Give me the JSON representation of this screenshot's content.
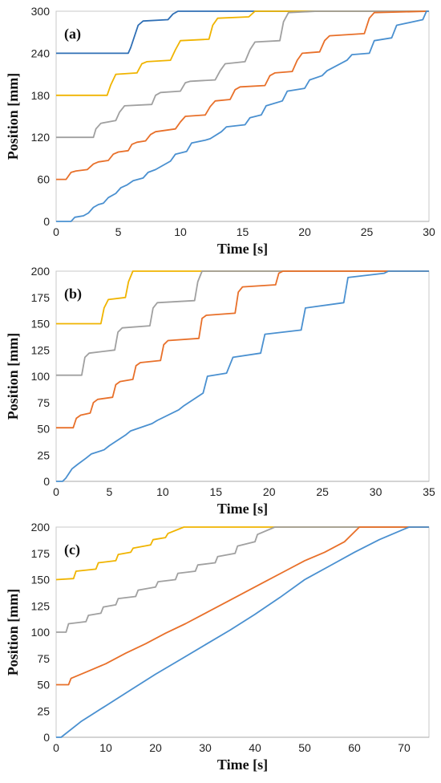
{
  "chart_data": [
    {
      "type": "line",
      "panel_label": "(a)",
      "xlabel": "Time [s]",
      "ylabel": "Position [mm]",
      "xlim": [
        0,
        30
      ],
      "ylim": [
        0,
        300
      ],
      "xticks": [
        0,
        5,
        10,
        15,
        20,
        25,
        30
      ],
      "yticks": [
        0,
        60,
        120,
        180,
        240,
        300
      ],
      "grid": false,
      "series": [
        {
          "color": "#2f6fb5",
          "x": [
            0,
            5.8,
            6.0,
            6.6,
            7.0,
            9.0,
            9.4,
            9.8,
            30
          ],
          "y": [
            240,
            240,
            248,
            280,
            286,
            288,
            296,
            300,
            300
          ]
        },
        {
          "color": "#f0b400",
          "x": [
            0,
            4.1,
            4.4,
            4.8,
            6.5,
            6.9,
            7.3,
            9.2,
            9.6,
            10.0,
            12.3,
            12.6,
            13.0,
            15.5,
            16.0,
            30
          ],
          "y": [
            180,
            180,
            195,
            210,
            212,
            225,
            228,
            230,
            245,
            258,
            260,
            280,
            290,
            292,
            300,
            300
          ]
        },
        {
          "color": "#a0a0a0",
          "x": [
            0,
            3.0,
            3.2,
            3.6,
            4.8,
            5.1,
            5.5,
            7.7,
            8.0,
            8.4,
            10.0,
            10.4,
            10.8,
            12.8,
            13.2,
            13.6,
            15.2,
            15.6,
            16.0,
            18.0,
            18.3,
            18.7,
            21.0,
            30
          ],
          "y": [
            120,
            120,
            132,
            140,
            144,
            156,
            165,
            167,
            180,
            184,
            186,
            198,
            200,
            202,
            215,
            225,
            228,
            245,
            256,
            258,
            285,
            298,
            300,
            300
          ]
        },
        {
          "color": "#e8702a",
          "x": [
            0,
            0.8,
            1.2,
            1.6,
            2.5,
            3.0,
            3.4,
            4.2,
            4.6,
            5.0,
            5.8,
            6.1,
            6.5,
            7.2,
            7.6,
            8.0,
            9.6,
            10.0,
            10.4,
            12.0,
            12.4,
            12.8,
            14.0,
            14.4,
            14.8,
            16.8,
            17.2,
            17.6,
            19.0,
            19.4,
            19.8,
            21.2,
            21.6,
            22.0,
            24.8,
            25.2,
            25.6,
            30
          ],
          "y": [
            60,
            60,
            70,
            72,
            74,
            82,
            85,
            87,
            96,
            99,
            101,
            110,
            113,
            115,
            124,
            128,
            132,
            142,
            150,
            152,
            164,
            172,
            174,
            188,
            192,
            194,
            208,
            212,
            214,
            230,
            240,
            242,
            258,
            265,
            268,
            290,
            298,
            300
          ]
        },
        {
          "color": "#4a90d0",
          "x": [
            0,
            1.2,
            1.5,
            2.2,
            2.6,
            3.0,
            3.4,
            3.8,
            4.2,
            4.8,
            5.2,
            5.7,
            6.2,
            7.0,
            7.4,
            8.0,
            8.4,
            9.2,
            9.6,
            10.5,
            10.9,
            12.0,
            12.4,
            13.3,
            13.7,
            15.2,
            15.6,
            16.5,
            16.9,
            18.2,
            18.6,
            20.0,
            20.4,
            21.4,
            21.8,
            23.4,
            23.8,
            25.2,
            25.6,
            27.0,
            27.4,
            29.5,
            29.8,
            30
          ],
          "y": [
            0,
            0,
            6,
            8,
            12,
            20,
            24,
            26,
            34,
            40,
            48,
            52,
            58,
            62,
            70,
            74,
            78,
            86,
            96,
            100,
            112,
            116,
            118,
            128,
            135,
            138,
            148,
            152,
            165,
            172,
            186,
            190,
            202,
            208,
            215,
            230,
            238,
            240,
            258,
            262,
            280,
            288,
            300,
            300
          ]
        }
      ]
    },
    {
      "type": "line",
      "panel_label": "(b)",
      "xlabel": "Time [s]",
      "ylabel": "Position [mm]",
      "xlim": [
        0,
        35
      ],
      "ylim": [
        0,
        200
      ],
      "xticks": [
        0,
        5,
        10,
        15,
        20,
        25,
        30,
        35
      ],
      "yticks": [
        0,
        25,
        50,
        75,
        100,
        125,
        150,
        175,
        200
      ],
      "grid": false,
      "series": [
        {
          "color": "#f0b400",
          "x": [
            0,
            4.2,
            4.5,
            4.9,
            6.5,
            6.8,
            7.2,
            35
          ],
          "y": [
            150,
            150,
            165,
            173,
            175,
            190,
            200,
            200
          ]
        },
        {
          "color": "#a0a0a0",
          "x": [
            0,
            2.4,
            2.7,
            3.1,
            5.5,
            5.8,
            6.2,
            8.8,
            9.1,
            9.5,
            13.0,
            13.3,
            13.7,
            35
          ],
          "y": [
            101,
            101,
            118,
            122,
            125,
            142,
            146,
            148,
            165,
            170,
            172,
            190,
            200,
            200
          ]
        },
        {
          "color": "#e8702a",
          "x": [
            0,
            1.6,
            1.9,
            2.3,
            3.2,
            3.5,
            3.9,
            5.3,
            5.6,
            6.0,
            7.2,
            7.5,
            7.9,
            9.8,
            10.1,
            10.5,
            13.4,
            13.7,
            14.1,
            16.8,
            17.1,
            17.5,
            20.6,
            20.9,
            21.3,
            35
          ],
          "y": [
            51,
            51,
            60,
            63,
            65,
            75,
            78,
            80,
            92,
            95,
            97,
            110,
            113,
            115,
            130,
            134,
            136,
            155,
            158,
            160,
            180,
            185,
            187,
            198,
            200,
            200
          ]
        },
        {
          "color": "#4a90d0",
          "x": [
            0,
            0.6,
            0.9,
            1.5,
            2.0,
            2.8,
            3.3,
            4.5,
            5.0,
            6.5,
            7.0,
            9.0,
            9.5,
            11.5,
            12.0,
            13.8,
            14.2,
            16.0,
            16.6,
            19.2,
            19.6,
            23.0,
            23.4,
            27.0,
            27.4,
            30.8,
            31.2,
            35
          ],
          "y": [
            0,
            0,
            3,
            12,
            16,
            22,
            26,
            30,
            34,
            44,
            48,
            55,
            58,
            68,
            72,
            84,
            100,
            103,
            118,
            122,
            140,
            144,
            165,
            170,
            194,
            198,
            200,
            200
          ]
        }
      ]
    },
    {
      "type": "line",
      "panel_label": "(c)",
      "xlabel": "Time [s]",
      "ylabel": "Position [mm]",
      "xlim": [
        0,
        75
      ],
      "ylim": [
        0,
        200
      ],
      "xticks": [
        0,
        10,
        20,
        30,
        40,
        50,
        60,
        70
      ],
      "yticks": [
        0,
        25,
        50,
        75,
        100,
        125,
        150,
        175,
        200
      ],
      "grid": false,
      "series": [
        {
          "color": "#f0b400",
          "x": [
            0,
            3.5,
            4.0,
            8.0,
            8.5,
            12.0,
            12.5,
            15.0,
            15.5,
            19.0,
            19.5,
            22.0,
            22.5,
            25.7,
            75
          ],
          "y": [
            150,
            151,
            158,
            160,
            166,
            168,
            174,
            176,
            180,
            183,
            188,
            190,
            194,
            200,
            200
          ]
        },
        {
          "color": "#a0a0a0",
          "x": [
            0,
            2.0,
            2.5,
            6.0,
            6.5,
            9.0,
            9.5,
            12.0,
            12.5,
            16.0,
            16.5,
            20.0,
            20.5,
            24.0,
            24.5,
            28.0,
            28.5,
            32.0,
            32.5,
            36.0,
            36.5,
            40.0,
            40.5,
            44.0,
            75
          ],
          "y": [
            100,
            100,
            108,
            110,
            116,
            118,
            124,
            126,
            132,
            134,
            140,
            143,
            148,
            150,
            156,
            158,
            164,
            166,
            172,
            175,
            182,
            186,
            193,
            200,
            200
          ]
        },
        {
          "color": "#e8702a",
          "x": [
            0,
            2.5,
            3.0,
            6.0,
            10.0,
            14.0,
            18.0,
            22.0,
            26.0,
            30.0,
            34.0,
            38.0,
            42.0,
            46.0,
            50.0,
            54.0,
            58.0,
            61.0,
            75
          ],
          "y": [
            50,
            50,
            56,
            62,
            70,
            80,
            89,
            99,
            108,
            118,
            128,
            138,
            148,
            158,
            168,
            176,
            186,
            200,
            200
          ]
        },
        {
          "color": "#4a90d0",
          "x": [
            0,
            1.0,
            5.0,
            10.0,
            15.0,
            20.0,
            25.0,
            30.0,
            35.0,
            40.0,
            45.0,
            50.0,
            55.0,
            60.0,
            65.0,
            70.0,
            71.0,
            75
          ],
          "y": [
            0,
            0,
            15,
            30,
            45,
            60,
            74,
            88,
            102,
            117,
            133,
            150,
            163,
            176,
            188,
            198,
            200,
            200
          ]
        }
      ]
    }
  ]
}
